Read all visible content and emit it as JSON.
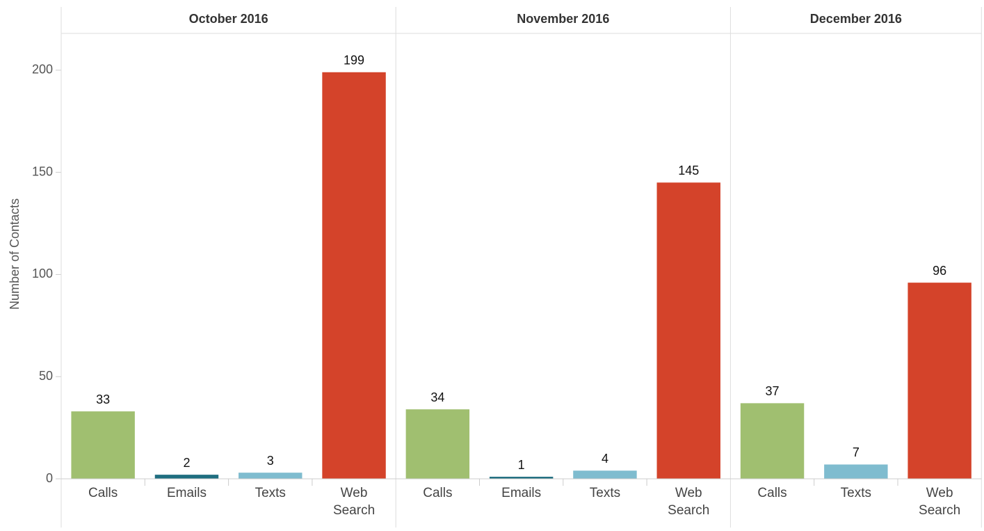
{
  "chart_data": {
    "type": "bar",
    "ylabel": "Number of Contacts",
    "ylim": [
      0,
      218
    ],
    "yticks": [
      0,
      50,
      100,
      150,
      200
    ],
    "category_colors": {
      "Calls": "#a0bf70",
      "Emails": "#1f6e80",
      "Texts": "#7fbccf",
      "Web Search": "#d4432a"
    },
    "panels": [
      {
        "title": "October 2016",
        "categories": [
          "Calls",
          "Emails",
          "Texts",
          "Web Search"
        ],
        "values": [
          33,
          2,
          3,
          199
        ]
      },
      {
        "title": "November 2016",
        "categories": [
          "Calls",
          "Emails",
          "Texts",
          "Web Search"
        ],
        "values": [
          34,
          1,
          4,
          145
        ]
      },
      {
        "title": "December 2016",
        "categories": [
          "Calls",
          "Texts",
          "Web Search"
        ],
        "values": [
          37,
          7,
          96
        ]
      }
    ]
  }
}
